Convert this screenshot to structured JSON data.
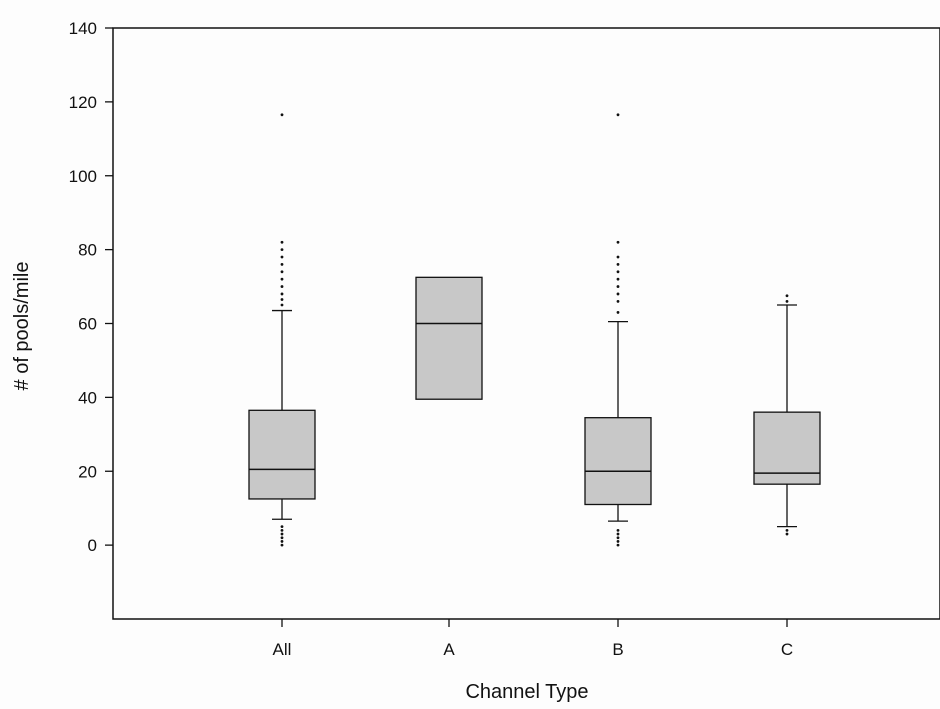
{
  "chart_data": {
    "type": "box",
    "title": "",
    "xlabel": "Channel Type",
    "ylabel": "# of pools/mile",
    "ylim": [
      -20,
      140
    ],
    "yticks": [
      0,
      20,
      40,
      60,
      80,
      100,
      120,
      140
    ],
    "categories": [
      "All",
      "A",
      "B",
      "C"
    ],
    "grid": false,
    "box_color": "#c8c8c8",
    "line_color": "#111111",
    "boxes": [
      {
        "category": "All",
        "q1": 12.5,
        "median": 20.5,
        "q3": 36.5,
        "whisker_low": 7,
        "whisker_high": 63.5,
        "outliers": [
          0,
          1,
          2,
          3,
          4,
          5,
          65,
          66.5,
          68,
          70,
          72,
          74,
          76,
          78,
          80,
          82,
          116.5
        ]
      },
      {
        "category": "A",
        "q1": 39.5,
        "median": 60,
        "q3": 72.5,
        "whisker_low": null,
        "whisker_high": null,
        "outliers": []
      },
      {
        "category": "B",
        "q1": 11,
        "median": 20,
        "q3": 34.5,
        "whisker_low": 6.5,
        "whisker_high": 60.5,
        "outliers": [
          0,
          1,
          2,
          3,
          4,
          63,
          66,
          68,
          70,
          72,
          74,
          76,
          78,
          82,
          116.5
        ]
      },
      {
        "category": "C",
        "q1": 16.5,
        "median": 19.5,
        "q3": 36,
        "whisker_low": 5,
        "whisker_high": 65,
        "outliers": [
          3,
          4,
          66,
          67.5
        ]
      }
    ]
  }
}
